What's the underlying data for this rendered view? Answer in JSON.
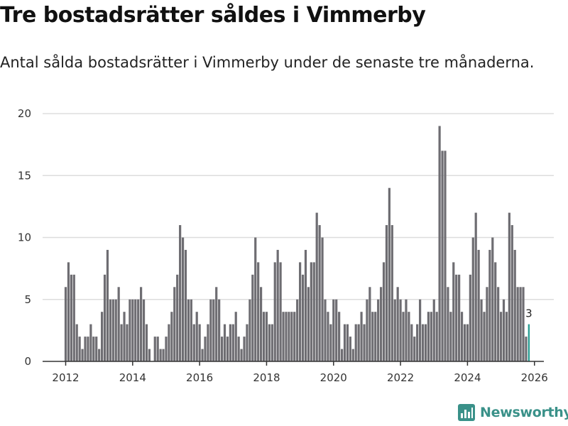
{
  "header": {
    "title": "Tre bostadsrätter såldes i Vimmerby",
    "subtitle": "Antal sålda bostadsrätter i Vimmerby under de senaste tre månaderna."
  },
  "brand": {
    "name": "Newsworthy",
    "icon": "bar-chart-logo-icon",
    "color": "#3a9189"
  },
  "colors": {
    "bar": "#6e6d72",
    "highlight": "#2a9d93",
    "grid": "#dddddd",
    "axis": "#333333"
  },
  "chart_data": {
    "type": "bar",
    "title": "Tre bostadsrätter såldes i Vimmerby",
    "xlabel": "",
    "ylabel": "",
    "ylim": [
      0,
      20
    ],
    "yticks": [
      0,
      5,
      10,
      15,
      20
    ],
    "xticks": [
      "2012",
      "2014",
      "2016",
      "2018",
      "2020",
      "2022",
      "2024",
      "2026"
    ],
    "start": "2012-01",
    "frequency": "monthly",
    "grid": true,
    "highlight_label": "3",
    "series": [
      {
        "name": "Antal sålda bostadsrätter",
        "values": [
          6,
          8,
          7,
          7,
          3,
          2,
          1,
          2,
          2,
          3,
          2,
          2,
          1,
          4,
          7,
          9,
          5,
          5,
          5,
          6,
          3,
          4,
          3,
          5,
          5,
          5,
          5,
          6,
          5,
          3,
          1,
          0,
          2,
          2,
          1,
          1,
          2,
          3,
          4,
          6,
          7,
          11,
          10,
          9,
          5,
          5,
          3,
          4,
          3,
          1,
          2,
          3,
          5,
          5,
          6,
          5,
          2,
          3,
          2,
          3,
          3,
          4,
          2,
          1,
          2,
          3,
          5,
          7,
          10,
          8,
          6,
          4,
          4,
          3,
          3,
          8,
          9,
          8,
          4,
          4,
          4,
          4,
          4,
          5,
          8,
          7,
          9,
          6,
          8,
          8,
          12,
          11,
          10,
          5,
          4,
          3,
          5,
          5,
          4,
          1,
          3,
          3,
          2,
          1,
          3,
          3,
          4,
          3,
          5,
          6,
          4,
          4,
          5,
          6,
          8,
          11,
          14,
          11,
          5,
          6,
          5,
          4,
          5,
          4,
          3,
          2,
          3,
          5,
          3,
          3,
          4,
          4,
          5,
          4,
          19,
          17,
          17,
          6,
          4,
          8,
          7,
          7,
          4,
          3,
          3,
          7,
          10,
          12,
          9,
          5,
          4,
          6,
          9,
          10,
          8,
          6,
          4,
          5,
          4,
          12,
          11,
          9,
          6,
          6,
          6,
          2,
          3
        ]
      }
    ]
  }
}
